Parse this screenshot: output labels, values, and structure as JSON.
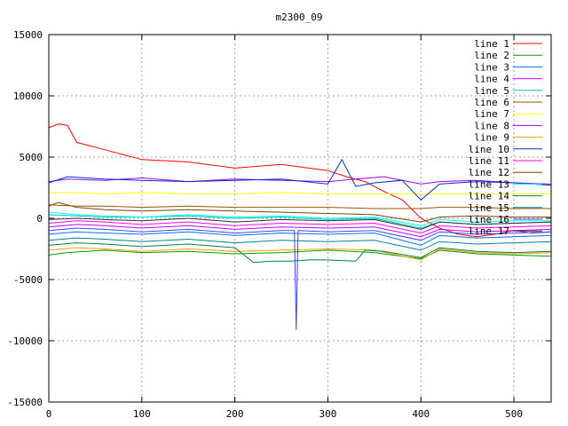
{
  "chart_data": {
    "type": "line",
    "title": "m2300_09",
    "xlabel": "",
    "ylabel": "",
    "xlim": [
      0,
      540
    ],
    "ylim": [
      -15000,
      15000
    ],
    "x_ticks": [
      0,
      100,
      200,
      300,
      400,
      500
    ],
    "y_ticks": [
      -15000,
      -10000,
      -5000,
      0,
      5000,
      10000,
      15000
    ],
    "grid": true,
    "legend_position": "top-right",
    "series": [
      {
        "name": "line 1",
        "color": "#ff0000",
        "x": [
          0,
          10,
          20,
          30,
          60,
          100,
          150,
          200,
          250,
          300,
          320,
          340,
          360,
          380,
          400,
          420,
          440,
          460,
          480,
          500,
          520,
          540
        ],
        "y": [
          7400,
          7700,
          7600,
          6200,
          5600,
          4800,
          4600,
          4100,
          4400,
          3900,
          3400,
          3000,
          2200,
          1500,
          0,
          -800,
          -1300,
          -1500,
          -1300,
          -1000,
          -1200,
          -1100
        ]
      },
      {
        "name": "line 2",
        "color": "#00a000",
        "x": [
          0,
          20,
          60,
          100,
          150,
          200,
          250,
          300,
          350,
          400,
          420,
          460,
          500,
          540
        ],
        "y": [
          -3000,
          -2800,
          -2600,
          -2800,
          -2700,
          -2900,
          -2800,
          -2600,
          -2800,
          -3300,
          -2600,
          -2900,
          -3000,
          -3100
        ]
      },
      {
        "name": "line 3",
        "color": "#0070ff",
        "x": [
          0,
          30,
          60,
          100,
          150,
          200,
          250,
          300,
          350,
          400,
          420,
          460,
          500,
          540
        ],
        "y": [
          -1300,
          -1100,
          -1200,
          -1300,
          -1100,
          -1400,
          -1200,
          -1300,
          -1200,
          -2200,
          -1400,
          -1600,
          -1500,
          -1400
        ]
      },
      {
        "name": "line 4",
        "color": "#c000ff",
        "x": [
          0,
          30,
          60,
          100,
          150,
          200,
          250,
          300,
          350,
          400,
          420,
          460,
          500,
          540
        ],
        "y": [
          -700,
          -500,
          -600,
          -800,
          -600,
          -900,
          -700,
          -800,
          -700,
          -1500,
          -900,
          -1100,
          -1000,
          -900
        ]
      },
      {
        "name": "line 5",
        "color": "#00c0c0",
        "x": [
          0,
          30,
          60,
          100,
          150,
          200,
          250,
          300,
          350,
          400,
          420,
          460,
          500,
          540
        ],
        "y": [
          300,
          200,
          100,
          100,
          200,
          0,
          100,
          -100,
          0,
          -800,
          -300,
          -500,
          -400,
          -300
        ]
      },
      {
        "name": "line 6",
        "color": "#a05000",
        "x": [
          0,
          30,
          60,
          100,
          150,
          200,
          250,
          300,
          350,
          400,
          420,
          460,
          500,
          540
        ],
        "y": [
          1100,
          1000,
          1000,
          900,
          1000,
          900,
          900,
          900,
          800,
          800,
          900,
          900,
          800,
          800
        ]
      },
      {
        "name": "line 7",
        "color": "#ffff00",
        "x": [
          0,
          30,
          60,
          100,
          150,
          200,
          250,
          300,
          350,
          400,
          450,
          500,
          540
        ],
        "y": [
          2100,
          2100,
          2000,
          2100,
          2000,
          2000,
          2100,
          2000,
          2000,
          2000,
          2000,
          2000,
          2000
        ]
      },
      {
        "name": "line 8",
        "color": "#a000ff",
        "x": [
          0,
          20,
          60,
          100,
          150,
          200,
          250,
          300,
          330,
          360,
          400,
          420,
          460,
          500,
          540
        ],
        "y": [
          3000,
          3200,
          3100,
          3300,
          3000,
          3200,
          3100,
          3000,
          3200,
          3400,
          2800,
          3000,
          3100,
          2900,
          2800
        ]
      },
      {
        "name": "line 9",
        "color": "#ff9900",
        "x": [
          0,
          30,
          60,
          100,
          150,
          200,
          250,
          300,
          350,
          400,
          420,
          460,
          500,
          540
        ],
        "y": [
          -2600,
          -2400,
          -2500,
          -2700,
          -2500,
          -2700,
          -2600,
          -2500,
          -2600,
          -3400,
          -2500,
          -2800,
          -2900,
          -2800
        ]
      },
      {
        "name": "line 10",
        "color": "#0030c0",
        "x": [
          0,
          20,
          60,
          100,
          150,
          200,
          250,
          300,
          315,
          330,
          350,
          380,
          400,
          420,
          460,
          500,
          540
        ],
        "y": [
          2900,
          3400,
          3200,
          3100,
          3000,
          3100,
          3200,
          2800,
          4800,
          2600,
          2900,
          3100,
          1500,
          2800,
          3000,
          2900,
          2700
        ]
      },
      {
        "name": "line 11",
        "color": "#ff00ff",
        "x": [
          0,
          30,
          60,
          100,
          150,
          200,
          250,
          300,
          350,
          400,
          420,
          460,
          500,
          540
        ],
        "y": [
          -400,
          -200,
          -300,
          -500,
          -300,
          -600,
          -400,
          -500,
          -400,
          -1200,
          -600,
          -800,
          -700,
          -600
        ]
      },
      {
        "name": "line 12",
        "color": "#804000",
        "x": [
          0,
          10,
          30,
          60,
          100,
          150,
          200,
          250,
          300,
          350,
          400,
          420,
          460,
          500,
          540
        ],
        "y": [
          1000,
          1300,
          900,
          700,
          600,
          700,
          600,
          500,
          400,
          300,
          -300,
          100,
          200,
          100,
          100
        ]
      },
      {
        "name": "line 13",
        "color": "#00ffff",
        "x": [
          0,
          30,
          60,
          100,
          150,
          200,
          250,
          300,
          350,
          400,
          420,
          460,
          500,
          540
        ],
        "y": [
          500,
          300,
          200,
          100,
          300,
          100,
          200,
          0,
          100,
          -600,
          -100,
          -300,
          -200,
          -200
        ]
      },
      {
        "name": "line 14",
        "color": "#008040",
        "x": [
          0,
          30,
          60,
          100,
          150,
          200,
          220,
          240,
          260,
          280,
          300,
          330,
          340,
          360,
          400,
          420,
          460,
          500,
          540
        ],
        "y": [
          -2200,
          -2000,
          -2100,
          -2300,
          -2100,
          -2400,
          -3600,
          -3500,
          -3500,
          -3400,
          -3400,
          -3500,
          -2600,
          -2700,
          -3200,
          -2400,
          -2700,
          -2800,
          -2700
        ]
      },
      {
        "name": "line 15",
        "color": "#0080a0",
        "x": [
          0,
          30,
          60,
          100,
          150,
          200,
          250,
          300,
          350,
          400,
          420,
          460,
          500,
          540
        ],
        "y": [
          -1800,
          -1600,
          -1700,
          -1900,
          -1700,
          -2000,
          -1800,
          -1900,
          -1800,
          -2600,
          -1900,
          -2100,
          -2000,
          -1900
        ]
      },
      {
        "name": "line 16",
        "color": "#4040ff",
        "x": [
          0,
          30,
          60,
          100,
          150,
          200,
          250,
          264,
          266,
          268,
          300,
          350,
          400,
          420,
          460,
          500,
          540
        ],
        "y": [
          -1000,
          -800,
          -900,
          -1100,
          -900,
          -1200,
          -1000,
          -1000,
          -9100,
          -1000,
          -1100,
          -1000,
          -1800,
          -1100,
          -1300,
          -1200,
          -1100
        ]
      },
      {
        "name": "line 17",
        "color": "#303030",
        "x": [
          0,
          30,
          60,
          100,
          150,
          200,
          250,
          300,
          350,
          400,
          420,
          460,
          500,
          540
        ],
        "y": [
          -100,
          0,
          -100,
          -200,
          0,
          -300,
          -100,
          -200,
          -100,
          -900,
          -300,
          -500,
          -400,
          -300
        ]
      }
    ]
  }
}
